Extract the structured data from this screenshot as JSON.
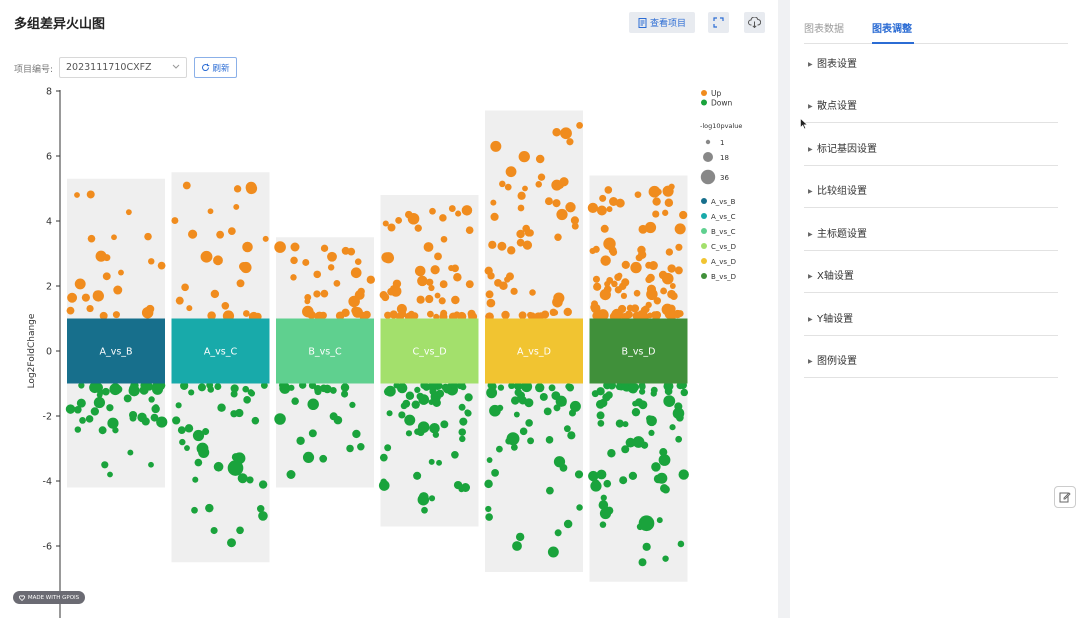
{
  "header": {
    "title": "多组差异火山图",
    "view_project_label": "查看项目",
    "project_label": "项目编号:",
    "project_value": "2023111710CXFZ",
    "refresh_label": "刷新"
  },
  "badge_text": "MADE WITH GPOIS",
  "right_panel": {
    "tabs": [
      {
        "label": "图表数据"
      },
      {
        "label": "图表调整"
      }
    ],
    "sections": [
      {
        "label": "图表设置"
      },
      {
        "label": "散点设置"
      },
      {
        "label": "标记基因设置"
      },
      {
        "label": "比较组设置"
      },
      {
        "label": "主标题设置"
      },
      {
        "label": "X轴设置"
      },
      {
        "label": "Y轴设置"
      },
      {
        "label": "图例设置"
      }
    ]
  },
  "chart_data": {
    "type": "scatter",
    "ylabel": "Log2FoldChange",
    "ylim": [
      -8.5,
      8
    ],
    "yticks": [
      8,
      6,
      4,
      2,
      0,
      -2,
      -4,
      -6
    ],
    "groups": [
      {
        "name": "A_vs_B",
        "color": "#176f8c",
        "ymax": 5.3,
        "ymin": -4.2
      },
      {
        "name": "A_vs_C",
        "color": "#18aaaa",
        "ymax": 5.5,
        "ymin": -6.5
      },
      {
        "name": "B_vs_C",
        "color": "#5fd08f",
        "ymax": 3.5,
        "ymin": -4.2
      },
      {
        "name": "C_vs_D",
        "color": "#a3e06c",
        "ymax": 4.8,
        "ymin": -5.4
      },
      {
        "name": "A_vs_D",
        "color": "#f1c431",
        "ymax": 7.4,
        "ymin": -6.8
      },
      {
        "name": "B_vs_D",
        "color": "#40903a",
        "ymax": 5.4,
        "ymin": -7.1
      }
    ],
    "highlight_points": [
      {
        "group": 0,
        "y": 4.8,
        "size": 1
      },
      {
        "group": 0,
        "y": 3.5,
        "size": 1
      },
      {
        "group": 0,
        "y": -3.5,
        "size": 1
      },
      {
        "group": 0,
        "y": -3.8,
        "size": 1
      },
      {
        "group": 1,
        "y": 5.0,
        "size": 12
      },
      {
        "group": 1,
        "y": 4.3,
        "size": 1
      },
      {
        "group": 1,
        "y": 3.2,
        "size": 10
      },
      {
        "group": 1,
        "y": 2.9,
        "size": 14
      },
      {
        "group": 1,
        "y": 2.6,
        "size": 6
      },
      {
        "group": 1,
        "y": -3.0,
        "size": 14
      },
      {
        "group": 1,
        "y": -3.3,
        "size": 14
      },
      {
        "group": 1,
        "y": -2.6,
        "size": 12
      },
      {
        "group": 1,
        "y": -3.6,
        "size": 30
      },
      {
        "group": 1,
        "y": -4.9,
        "size": 2
      },
      {
        "group": 1,
        "y": -5.9,
        "size": 6
      },
      {
        "group": 2,
        "y": 3.2,
        "size": 6
      },
      {
        "group": 2,
        "y": 2.9,
        "size": 8
      },
      {
        "group": 2,
        "y": -3.8,
        "size": 6
      },
      {
        "group": 3,
        "y": 4.3,
        "size": 2
      },
      {
        "group": 3,
        "y": 3.8,
        "size": 4
      },
      {
        "group": 3,
        "y": 3.2,
        "size": 8
      },
      {
        "group": 3,
        "y": -4.2,
        "size": 6
      },
      {
        "group": 3,
        "y": -4.9,
        "size": 2
      },
      {
        "group": 4,
        "y": 6.7,
        "size": 14
      },
      {
        "group": 4,
        "y": 5.0,
        "size": 1
      },
      {
        "group": 4,
        "y": 4.2,
        "size": 12
      },
      {
        "group": 4,
        "y": 4.4,
        "size": 2
      },
      {
        "group": 4,
        "y": 3.5,
        "size": 3
      },
      {
        "group": 4,
        "y": -6.0,
        "size": 8
      },
      {
        "group": 4,
        "y": -6.2,
        "size": 2
      },
      {
        "group": 4,
        "y": -2.7,
        "size": 18
      },
      {
        "group": 5,
        "y": 4.9,
        "size": 14
      },
      {
        "group": 5,
        "y": 4.6,
        "size": 6
      },
      {
        "group": 5,
        "y": 3.8,
        "size": 12
      },
      {
        "group": 5,
        "y": 3.3,
        "size": 16
      },
      {
        "group": 5,
        "y": -5.3,
        "size": 30
      },
      {
        "group": 5,
        "y": -5.0,
        "size": 12
      },
      {
        "group": 5,
        "y": -6.5,
        "size": 4
      },
      {
        "group": 5,
        "y": -3.8,
        "size": 8
      },
      {
        "group": 5,
        "y": -2.8,
        "size": 14
      }
    ],
    "legend": {
      "placement": "right",
      "direction": [
        {
          "name": "Up",
          "color": "#f08c1e"
        },
        {
          "name": "Down",
          "color": "#1aa33c"
        }
      ],
      "size_title": "-log10pvalue",
      "sizes": [
        {
          "label": "1",
          "value": 1
        },
        {
          "label": "18",
          "value": 18
        },
        {
          "label": "36",
          "value": 36
        }
      ]
    }
  },
  "colors": {
    "up": "#f08c1e",
    "down": "#1aa33c",
    "accent": "#2b6cd4",
    "band": "#efefef"
  },
  "icons": {
    "view_project": "document-icon",
    "fullscreen": "fullscreen-icon",
    "download": "cloud-download-icon",
    "refresh": "refresh-icon",
    "edit": "edit-icon"
  }
}
